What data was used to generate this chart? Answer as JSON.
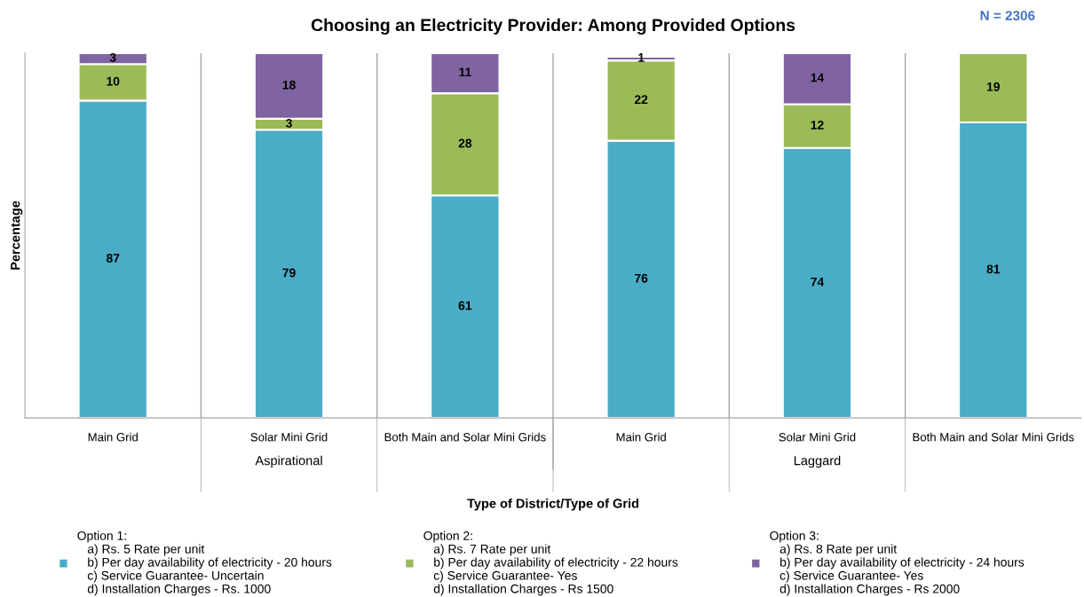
{
  "chart_data": {
    "type": "bar",
    "stacked": true,
    "relative": false,
    "title": "Choosing an Electricity Provider: Among Provided Options",
    "xlabel": "Type of District/Type of Grid",
    "ylabel": "Percentage",
    "categories": [
      "Main Grid",
      "Solar Mini Grid",
      "Both Main and Solar Mini Grids",
      "Main Grid",
      "Solar Mini Grid",
      "Both Main and Solar Mini Grids"
    ],
    "series": [
      {
        "name": "Option 1:\n   a) Rs. 5 Rate per unit\n   b) Per day availability of electricity - 20 hours\n   c) Service Guarantee- Uncertain\n   d) Installation Charges - Rs. 1000",
        "color": "#4bacc6",
        "values": [
          87,
          79,
          61,
          76,
          74,
          81
        ]
      },
      {
        "name": "Option 2:\n   a) Rs. 7 Rate per unit\n   b) Per day availability of electricity - 22 hours\n   c) Service Guarantee- Yes\n   d) Installation Charges - Rs 1500",
        "color": "#9bbb59",
        "values": [
          10,
          3,
          28,
          22,
          12,
          19
        ]
      },
      {
        "name": "Option 3:\n   a) Rs. 8 Rate per unit\n   b) Per day availability of electricity - 24 hours\n   c) Service Guarantee- Yes\n   d) Installation Charges - Rs 2000",
        "color": "#8064a2",
        "values": [
          3,
          18,
          11,
          1,
          14,
          null
        ]
      }
    ],
    "data_labels": true,
    "legend": "bottom",
    "tick_labels": "x",
    "annotations": [
      "Aspirational",
      "Laggard",
      "N = 2306"
    ]
  }
}
